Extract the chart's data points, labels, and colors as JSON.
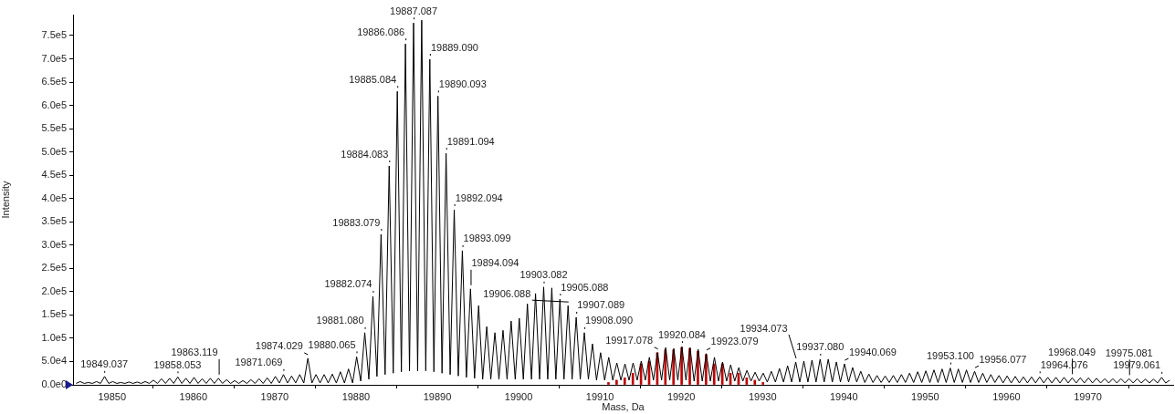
{
  "chart_data": {
    "type": "line",
    "xlabel": "Mass, Da",
    "ylabel": "Intensity",
    "marker": "none",
    "grid": false,
    "legend": false,
    "xlim": [
      19845.2,
      19980.5
    ],
    "ylim": [
      0,
      795000
    ],
    "xticks": [
      19850,
      19860,
      19870,
      19880,
      19890,
      19900,
      19910,
      19920,
      19930,
      19940,
      19950,
      19960,
      19970
    ],
    "yticks": [
      {
        "value": 0,
        "label": "0.0e0"
      },
      {
        "value": 50000,
        "label": "5.0e4"
      },
      {
        "value": 100000,
        "label": "1.0e5"
      },
      {
        "value": 150000,
        "label": "1.5e5"
      },
      {
        "value": 200000,
        "label": "2.0e5"
      },
      {
        "value": 250000,
        "label": "2.5e5"
      },
      {
        "value": 300000,
        "label": "3.0e5"
      },
      {
        "value": 350000,
        "label": "3.5e5"
      },
      {
        "value": 400000,
        "label": "4.0e5"
      },
      {
        "value": 450000,
        "label": "4.5e5"
      },
      {
        "value": 500000,
        "label": "5.0e5"
      },
      {
        "value": 550000,
        "label": "5.5e5"
      },
      {
        "value": 600000,
        "label": "6.0e5"
      },
      {
        "value": 650000,
        "label": "6.5e5"
      },
      {
        "value": 700000,
        "label": "7.0e5"
      },
      {
        "value": 750000,
        "label": "7.5e5"
      }
    ],
    "series": [
      {
        "color": "#000000",
        "x": [
          19845.58,
          19846.08,
          19846.58,
          19847.08,
          19847.58,
          19848.08,
          19848.58,
          19849.08,
          19849.58,
          19850.08,
          19850.58,
          19851.08,
          19851.58,
          19852.08,
          19852.58,
          19853.08,
          19853.58,
          19854.08,
          19854.58,
          19855.08,
          19855.58,
          19856.08,
          19856.58,
          19857.08,
          19857.58,
          19858.08,
          19858.58,
          19859.08,
          19859.58,
          19860.08,
          19860.58,
          19861.08,
          19861.58,
          19862.08,
          19862.58,
          19863.08,
          19863.58,
          19864.08,
          19864.58,
          19865.08,
          19865.58,
          19866.08,
          19866.58,
          19867.08,
          19867.58,
          19868.08,
          19868.58,
          19869.08,
          19869.58,
          19870.08,
          19870.58,
          19871.08,
          19871.58,
          19872.08,
          19872.58,
          19873.08,
          19873.58,
          19874.08,
          19874.58,
          19875.08,
          19875.58,
          19876.08,
          19876.58,
          19877.08,
          19877.58,
          19878.08,
          19878.58,
          19879.08,
          19879.58,
          19880.08,
          19880.58,
          19881.08,
          19881.58,
          19882.08,
          19882.58,
          19883.08,
          19883.58,
          19884.08,
          19884.58,
          19885.08,
          19885.58,
          19886.08,
          19886.58,
          19887.08,
          19887.58,
          19888.08,
          19888.58,
          19889.08,
          19889.58,
          19890.08,
          19890.58,
          19891.08,
          19891.58,
          19892.08,
          19892.58,
          19893.08,
          19893.58,
          19894.08,
          19894.58,
          19895.08,
          19895.58,
          19896.08,
          19896.58,
          19897.08,
          19897.58,
          19898.08,
          19898.58,
          19899.08,
          19899.58,
          19900.08,
          19900.58,
          19901.08,
          19901.58,
          19902.08,
          19902.58,
          19903.08,
          19903.58,
          19904.08,
          19904.58,
          19905.08,
          19905.58,
          19906.08,
          19906.58,
          19907.08,
          19907.58,
          19908.08,
          19908.58,
          19909.08,
          19909.58,
          19910.08,
          19910.58,
          19911.08,
          19911.58,
          19912.08,
          19912.58,
          19913.08,
          19913.58,
          19914.08,
          19914.58,
          19915.08,
          19915.58,
          19916.08,
          19916.58,
          19917.08,
          19917.58,
          19918.08,
          19918.58,
          19919.08,
          19919.58,
          19920.08,
          19920.58,
          19921.08,
          19921.58,
          19922.08,
          19922.58,
          19923.08,
          19923.58,
          19924.08,
          19924.58,
          19925.08,
          19925.58,
          19926.08,
          19926.58,
          19927.08,
          19927.58,
          19928.08,
          19928.58,
          19929.08,
          19929.58,
          19930.08,
          19930.58,
          19931.08,
          19931.58,
          19932.08,
          19932.58,
          19933.08,
          19933.58,
          19934.08,
          19934.58,
          19935.08,
          19935.58,
          19936.08,
          19936.58,
          19937.08,
          19937.58,
          19938.08,
          19938.58,
          19939.08,
          19939.58,
          19940.08,
          19940.58,
          19941.08,
          19941.58,
          19942.08,
          19942.58,
          19943.08,
          19943.58,
          19944.08,
          19944.58,
          19945.08,
          19945.58,
          19946.08,
          19946.58,
          19947.08,
          19947.58,
          19948.08,
          19948.58,
          19949.08,
          19949.58,
          19950.08,
          19950.58,
          19951.08,
          19951.58,
          19952.08,
          19952.58,
          19953.08,
          19953.58,
          19954.08,
          19954.58,
          19955.08,
          19955.58,
          19956.08,
          19956.58,
          19957.08,
          19957.58,
          19958.08,
          19958.58,
          19959.08,
          19959.58,
          19960.08,
          19960.58,
          19961.08,
          19961.58,
          19962.08,
          19962.58,
          19963.08,
          19963.58,
          19964.08,
          19964.58,
          19965.08,
          19965.58,
          19966.08,
          19966.58,
          19967.08,
          19967.58,
          19968.08,
          19968.58,
          19969.08,
          19969.58,
          19970.08,
          19970.58,
          19971.08,
          19971.58,
          19972.08,
          19972.58,
          19973.08,
          19973.58,
          19974.08,
          19974.58,
          19975.08,
          19975.58,
          19976.08,
          19976.58,
          19977.08,
          19977.58,
          19978.08,
          19978.58,
          19979.08,
          19979.58,
          19980.08
        ],
        "values": [
          3000,
          7000,
          3000,
          5000,
          3000,
          7000,
          3000,
          18000,
          3000,
          7000,
          3000,
          5000,
          3000,
          6000,
          3000,
          6000,
          3000,
          7000,
          3000,
          10000,
          3000,
          13000,
          3000,
          14000,
          3000,
          17000,
          3000,
          14000,
          3000,
          16000,
          3000,
          13000,
          3000,
          14000,
          3000,
          14000,
          3000,
          11000,
          3000,
          9000,
          3000,
          9000,
          3000,
          11000,
          3000,
          13000,
          3000,
          15000,
          3000,
          18000,
          4000,
          22000,
          4000,
          19000,
          4000,
          22000,
          4000,
          57000,
          4000,
          22000,
          4000,
          22000,
          4000,
          23000,
          4000,
          28000,
          4000,
          34000,
          4000,
          60000,
          8000,
          112000,
          12000,
          190000,
          18000,
          323000,
          22000,
          470000,
          25000,
          630000,
          28000,
          732000,
          30000,
          777000,
          30000,
          783000,
          30000,
          699000,
          28000,
          620000,
          25000,
          497000,
          22000,
          376000,
          19000,
          288000,
          16000,
          206000,
          14000,
          170000,
          12000,
          125000,
          12000,
          112000,
          12000,
          117000,
          12000,
          137000,
          12000,
          143000,
          12000,
          174000,
          12000,
          196000,
          12000,
          210000,
          12000,
          208000,
          12000,
          184000,
          12000,
          170000,
          12000,
          145000,
          12000,
          112000,
          12000,
          88000,
          10000,
          69000,
          10000,
          59000,
          10000,
          47000,
          10000,
          45000,
          10000,
          47000,
          10000,
          51000,
          10000,
          59000,
          10000,
          69000,
          10000,
          80000,
          10000,
          78000,
          10000,
          82000,
          10000,
          80000,
          8000,
          76000,
          8000,
          67000,
          8000,
          59000,
          8000,
          49000,
          8000,
          43000,
          8000,
          37000,
          8000,
          31000,
          8000,
          27000,
          8000,
          25000,
          6000,
          29000,
          6000,
          35000,
          6000,
          41000,
          6000,
          49000,
          6000,
          51000,
          6000,
          53000,
          6000,
          55000,
          6000,
          55000,
          6000,
          49000,
          6000,
          45000,
          6000,
          37000,
          6000,
          29000,
          5000,
          23000,
          5000,
          20000,
          5000,
          19000,
          5000,
          20000,
          5000,
          22000,
          5000,
          25000,
          5000,
          28000,
          5000,
          30000,
          5000,
          32000,
          5000,
          34000,
          5000,
          36000,
          5000,
          34000,
          5000,
          32000,
          5000,
          29000,
          5000,
          25000,
          5000,
          22000,
          5000,
          20000,
          4000,
          19000,
          4000,
          18000,
          4000,
          17000,
          4000,
          17000,
          4000,
          17000,
          4000,
          16000,
          4000,
          16000,
          4000,
          16000,
          4000,
          15000,
          4000,
          15000,
          4000,
          15000,
          4000,
          14000,
          4000,
          13000,
          4000,
          13000,
          4000,
          13000,
          4000,
          13000,
          4000,
          13000,
          4000,
          12000,
          4000,
          12000,
          4000,
          16000,
          4000,
          10000
        ]
      },
      {
        "type": "bar",
        "color": "#c00000",
        "x": [
          19911.05,
          19912.05,
          19913.05,
          19914.05,
          19915.05,
          19916.05,
          19917.05,
          19918.05,
          19919.05,
          19920.05,
          19921.05,
          19922.05,
          19923.05,
          19924.05,
          19925.05,
          19926.05,
          19927.05,
          19928.05,
          19929.05,
          19930.05
        ],
        "values": [
          5000,
          10000,
          15000,
          25000,
          45000,
          50000,
          69000,
          75000,
          75000,
          80000,
          78000,
          72000,
          65000,
          45000,
          45000,
          25000,
          25000,
          15000,
          10000,
          5000
        ]
      }
    ],
    "annotations": [
      {
        "text": "19849.037",
        "x": 19849.037,
        "y": 18000
      },
      {
        "text": "19858.053",
        "x": 19858.053,
        "y": 17000
      },
      {
        "text": "19863.119",
        "x": 19863.119,
        "y": 14000
      },
      {
        "text": "19871.069",
        "x": 19871.069,
        "y": 22000
      },
      {
        "text": "19874.029",
        "x": 19874.029,
        "y": 57000
      },
      {
        "text": "19880.065",
        "x": 19880.065,
        "y": 60000
      },
      {
        "text": "19881.080",
        "x": 19881.08,
        "y": 112000
      },
      {
        "text": "19882.074",
        "x": 19882.074,
        "y": 190000
      },
      {
        "text": "19883.079",
        "x": 19883.079,
        "y": 323000
      },
      {
        "text": "19884.083",
        "x": 19884.083,
        "y": 470000
      },
      {
        "text": "19885.084",
        "x": 19885.084,
        "y": 630000
      },
      {
        "text": "19886.086",
        "x": 19886.086,
        "y": 732000
      },
      {
        "text": "19887.087",
        "x": 19887.087,
        "y": 777000
      },
      {
        "text": "19889.090",
        "x": 19889.09,
        "y": 699000
      },
      {
        "text": "19890.093",
        "x": 19890.093,
        "y": 620000
      },
      {
        "text": "19891.094",
        "x": 19891.094,
        "y": 497000
      },
      {
        "text": "19892.094",
        "x": 19892.094,
        "y": 376000
      },
      {
        "text": "19893.099",
        "x": 19893.099,
        "y": 288000
      },
      {
        "text": "19894.094",
        "x": 19894.094,
        "y": 206000
      },
      {
        "text": "19903.082",
        "x": 19903.082,
        "y": 210000
      },
      {
        "text": "19905.088",
        "x": 19905.088,
        "y": 184000
      },
      {
        "text": "19906.088",
        "x": 19906.088,
        "y": 170000
      },
      {
        "text": "19907.089",
        "x": 19907.089,
        "y": 145000
      },
      {
        "text": "19908.090",
        "x": 19908.09,
        "y": 112000
      },
      {
        "text": "19917.078",
        "x": 19917.078,
        "y": 69000
      },
      {
        "text": "19920.084",
        "x": 19920.084,
        "y": 82000
      },
      {
        "text": "19923.079",
        "x": 19923.079,
        "y": 67000
      },
      {
        "text": "19934.073",
        "x": 19934.073,
        "y": 49000
      },
      {
        "text": "19937.080",
        "x": 19937.08,
        "y": 55000
      },
      {
        "text": "19940.069",
        "x": 19940.069,
        "y": 45000
      },
      {
        "text": "19953.100",
        "x": 19953.1,
        "y": 36000
      },
      {
        "text": "19956.077",
        "x": 19956.077,
        "y": 29000
      },
      {
        "text": "19964.076",
        "x": 19964.076,
        "y": 17000
      },
      {
        "text": "19968.049",
        "x": 19968.049,
        "y": 15000
      },
      {
        "text": "19975.081",
        "x": 19975.081,
        "y": 13000
      },
      {
        "text": "19979.061",
        "x": 19979.061,
        "y": 16000
      }
    ]
  }
}
